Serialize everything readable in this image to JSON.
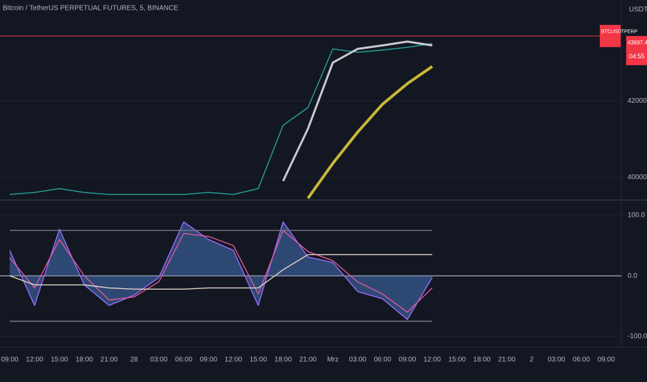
{
  "chart_data": [
    {
      "type": "line",
      "title": "Bitcoin / TetherUS PERPETUAL FUTURES, 5, BINANCE",
      "axis_unit": "USDT",
      "categories": [
        "09:00",
        "12:00",
        "15:00",
        "18:00",
        "21:00",
        "28",
        "03:00",
        "06:00",
        "09:00",
        "12:00",
        "15:00",
        "18:00",
        "21:00",
        "Mrz",
        "03:00",
        "06:00",
        "09:00",
        "12:00",
        "15:00",
        "18:00",
        "21:00",
        "2",
        "03:00",
        "06:00",
        "09:00"
      ],
      "series": [
        {
          "color": "#26a69a",
          "values": [
            39550,
            39600,
            39700,
            39600,
            39550,
            39550,
            39550,
            39550,
            39600,
            39550,
            39700,
            41360,
            41820,
            43360,
            43270,
            43330,
            43400,
            43500,
            null,
            null,
            null,
            null,
            null,
            null,
            null
          ]
        },
        {
          "color": "#c7c9cf",
          "values": [
            null,
            null,
            null,
            null,
            null,
            null,
            null,
            null,
            null,
            null,
            null,
            39900,
            41270,
            43000,
            43360,
            43450,
            43550,
            43450,
            null,
            null,
            null,
            null,
            null,
            null,
            null
          ]
        },
        {
          "color": "#c9b83a",
          "values": [
            null,
            null,
            null,
            null,
            null,
            null,
            null,
            null,
            null,
            null,
            null,
            null,
            39450,
            40360,
            41180,
            41910,
            42450,
            42900,
            null,
            null,
            null,
            null,
            null,
            null,
            null
          ]
        }
      ],
      "price_line": {
        "value": 43697.4,
        "label": "43697.4",
        "color": "#f23645"
      },
      "symbol_label": "BTCUSDTPERP",
      "countdown": "04:55",
      "ylim": [
        39420,
        44640
      ],
      "yticks": [
        {
          "value": 40000,
          "label": "40000.0"
        },
        {
          "value": 42000,
          "label": "42000.0"
        }
      ],
      "grid": true
    },
    {
      "type": "line",
      "categories": [
        "09:00",
        "12:00",
        "15:00",
        "18:00",
        "21:00",
        "28",
        "03:00",
        "06:00",
        "09:00",
        "12:00",
        "15:00",
        "18:00",
        "21:00",
        "Mrz",
        "03:00",
        "06:00",
        "09:00",
        "12:00",
        "15:00",
        "18:00",
        "21:00",
        "2",
        "03:00",
        "06:00",
        "09:00"
      ],
      "series": [
        {
          "color": "#4f86d9",
          "area": true,
          "values": [
            42,
            -49,
            77,
            -15,
            -49,
            -32,
            -3,
            89,
            60,
            42,
            -49,
            89,
            31,
            22,
            -26,
            -38,
            -72,
            -3,
            null,
            null,
            null,
            null,
            null,
            null,
            null
          ]
        },
        {
          "color": "#9c6cff",
          "values": [
            42,
            -49,
            77,
            -15,
            -49,
            -32,
            -3,
            89,
            60,
            42,
            -49,
            89,
            31,
            22,
            -26,
            -38,
            -72,
            -3,
            null,
            null,
            null,
            null,
            null,
            null,
            null
          ]
        },
        {
          "color": "#e05a9a",
          "values": [
            30,
            -20,
            60,
            0,
            -40,
            -35,
            -10,
            70,
            65,
            50,
            -30,
            75,
            40,
            25,
            -10,
            -30,
            -60,
            -20,
            null,
            null,
            null,
            null,
            null,
            null,
            null
          ]
        },
        {
          "color": "#e6d6cc",
          "values": [
            0,
            -15,
            -15,
            -15,
            -20,
            -22,
            -22,
            -22,
            -20,
            -20,
            -20,
            10,
            35,
            35,
            35,
            35,
            35,
            35,
            null,
            null,
            null,
            null,
            null,
            null,
            null
          ]
        },
        {
          "color": "#787b86",
          "values": [
            75,
            75,
            75,
            75,
            75,
            75,
            75,
            75,
            75,
            75,
            75,
            75,
            75,
            75,
            75,
            75,
            75,
            75,
            null,
            null,
            null,
            null,
            null,
            null,
            null
          ]
        },
        {
          "color": "#787b86",
          "values": [
            -75,
            -75,
            -75,
            -75,
            -75,
            -75,
            -75,
            -75,
            -75,
            -75,
            -75,
            -75,
            -75,
            -75,
            -75,
            -75,
            -75,
            -75,
            null,
            null,
            null,
            null,
            null,
            null,
            null
          ]
        }
      ],
      "ylim": [
        -118,
        124
      ],
      "yticks": [
        {
          "value": -100,
          "label": "-100.0"
        },
        {
          "value": 0,
          "label": "0.0"
        },
        {
          "value": 100,
          "label": "100.0"
        }
      ],
      "grid": true
    }
  ]
}
